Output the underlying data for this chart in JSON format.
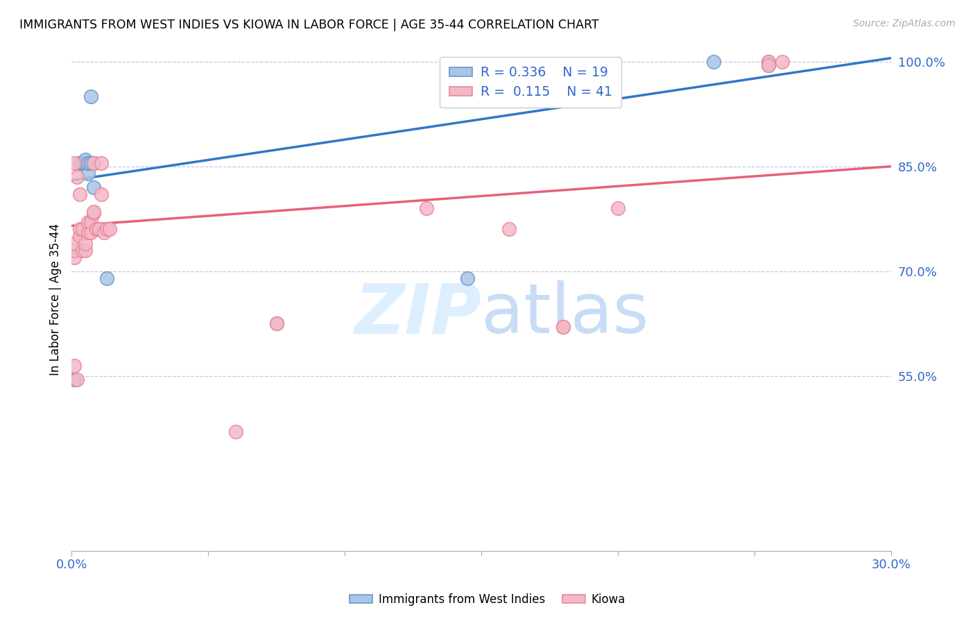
{
  "title": "IMMIGRANTS FROM WEST INDIES VS KIOWA IN LABOR FORCE | AGE 35-44 CORRELATION CHART",
  "source": "Source: ZipAtlas.com",
  "ylabel": "In Labor Force | Age 35-44",
  "x_min": 0.0,
  "x_max": 0.3,
  "y_min": 0.3,
  "y_max": 1.02,
  "y_ticks": [
    0.55,
    0.7,
    0.85,
    1.0
  ],
  "y_tick_labels": [
    "55.0%",
    "70.0%",
    "85.0%",
    "100.0%"
  ],
  "x_tick_labels": [
    "0.0%",
    "30.0%"
  ],
  "legend_entries": [
    {
      "r": "R = 0.336",
      "n": "N = 19"
    },
    {
      "r": "R =  0.115",
      "n": "N = 41"
    }
  ],
  "blue_color": "#a8c4e8",
  "blue_edge_color": "#6699cc",
  "pink_color": "#f4b8c8",
  "pink_edge_color": "#e88898",
  "blue_line_color": "#3575c8",
  "pink_line_color": "#e8607a",
  "watermark_color": "#ddeeff",
  "blue_scatter_x": [
    0.001,
    0.003,
    0.004,
    0.005,
    0.005,
    0.005,
    0.005,
    0.006,
    0.006,
    0.007,
    0.007,
    0.008,
    0.008,
    0.008,
    0.013,
    0.145,
    0.235,
    0.255,
    0.255
  ],
  "blue_scatter_y": [
    0.545,
    0.855,
    0.855,
    0.855,
    0.855,
    0.855,
    0.86,
    0.84,
    0.855,
    0.855,
    0.95,
    0.855,
    0.855,
    0.82,
    0.69,
    0.69,
    1.0,
    0.995,
    1.0
  ],
  "pink_scatter_x": [
    0.001,
    0.001,
    0.001,
    0.001,
    0.002,
    0.002,
    0.003,
    0.003,
    0.003,
    0.004,
    0.004,
    0.005,
    0.005,
    0.006,
    0.006,
    0.007,
    0.007,
    0.008,
    0.008,
    0.008,
    0.009,
    0.009,
    0.01,
    0.01,
    0.011,
    0.011,
    0.012,
    0.013,
    0.014,
    0.06,
    0.075,
    0.075,
    0.13,
    0.16,
    0.18,
    0.18,
    0.255,
    0.255,
    0.26,
    0.2,
    0.001
  ],
  "pink_scatter_y": [
    0.72,
    0.73,
    0.74,
    0.855,
    0.545,
    0.835,
    0.75,
    0.76,
    0.81,
    0.73,
    0.76,
    0.73,
    0.74,
    0.755,
    0.77,
    0.755,
    0.77,
    0.783,
    0.785,
    0.855,
    0.76,
    0.76,
    0.76,
    0.76,
    0.81,
    0.855,
    0.755,
    0.76,
    0.76,
    0.47,
    0.625,
    0.625,
    0.79,
    0.76,
    0.62,
    0.62,
    1.0,
    0.995,
    1.0,
    0.79,
    0.565
  ],
  "blue_line_x": [
    0.0,
    0.3
  ],
  "blue_line_y": [
    0.83,
    1.005
  ],
  "pink_line_x": [
    0.0,
    0.3
  ],
  "pink_line_y": [
    0.765,
    0.85
  ]
}
